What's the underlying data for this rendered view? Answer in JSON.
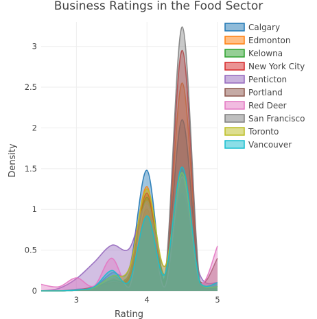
{
  "chart_data": {
    "type": "area",
    "title": "Business Ratings in the Food Sector",
    "xlabel": "Rating",
    "ylabel": "Density",
    "xlim": [
      2.5,
      5
    ],
    "ylim": [
      0,
      3.3
    ],
    "xticks": [
      "3",
      "4",
      "5"
    ],
    "yticks": [
      "0",
      "0.5",
      "1",
      "1.5",
      "2",
      "2.5",
      "3"
    ],
    "grid": true,
    "legend_position": "top-right",
    "x": [
      2.5,
      2.75,
      3.0,
      3.25,
      3.5,
      3.75,
      4.0,
      4.25,
      4.5,
      4.75,
      5.0
    ],
    "series": [
      {
        "name": "Calgary",
        "color": "#1f77b4",
        "values": [
          0.0,
          0.0,
          0.02,
          0.05,
          0.22,
          0.28,
          1.48,
          0.12,
          1.52,
          0.05,
          0.05
        ]
      },
      {
        "name": "Edmonton",
        "color": "#ff7f0e",
        "values": [
          0.0,
          0.0,
          0.01,
          0.04,
          0.15,
          0.22,
          1.28,
          0.15,
          2.55,
          0.08,
          0.05
        ]
      },
      {
        "name": "Kelowna",
        "color": "#2ca02c",
        "values": [
          0.0,
          0.0,
          0.01,
          0.05,
          0.18,
          0.2,
          1.15,
          0.2,
          1.2,
          0.1,
          0.1
        ]
      },
      {
        "name": "New York City",
        "color": "#d62728",
        "values": [
          0.0,
          0.0,
          0.01,
          0.04,
          0.13,
          0.2,
          1.2,
          0.15,
          2.95,
          0.08,
          0.05
        ]
      },
      {
        "name": "Penticton",
        "color": "#9467bd",
        "values": [
          0.0,
          0.03,
          0.15,
          0.35,
          0.56,
          0.52,
          1.05,
          0.3,
          1.2,
          0.2,
          0.1
        ]
      },
      {
        "name": "Portland",
        "color": "#8c564b",
        "values": [
          0.0,
          0.0,
          0.01,
          0.05,
          0.1,
          0.18,
          1.0,
          0.15,
          2.1,
          0.12,
          0.4
        ]
      },
      {
        "name": "Red Deer",
        "color": "#e377c2",
        "values": [
          0.08,
          0.05,
          0.16,
          0.06,
          0.4,
          0.05,
          1.1,
          0.05,
          1.4,
          0.1,
          0.55
        ]
      },
      {
        "name": "San Francisco",
        "color": "#7f7f7f",
        "values": [
          0.0,
          0.0,
          0.01,
          0.04,
          0.13,
          0.2,
          1.1,
          0.15,
          3.24,
          0.1,
          0.05
        ]
      },
      {
        "name": "Toronto",
        "color": "#bcbd22",
        "values": [
          0.0,
          0.0,
          0.01,
          0.04,
          0.18,
          0.28,
          1.25,
          0.3,
          1.45,
          0.1,
          0.05
        ]
      },
      {
        "name": "Vancouver",
        "color": "#17becf",
        "values": [
          0.0,
          0.0,
          0.01,
          0.05,
          0.25,
          0.12,
          0.92,
          0.2,
          1.52,
          0.1,
          0.1
        ]
      }
    ]
  }
}
